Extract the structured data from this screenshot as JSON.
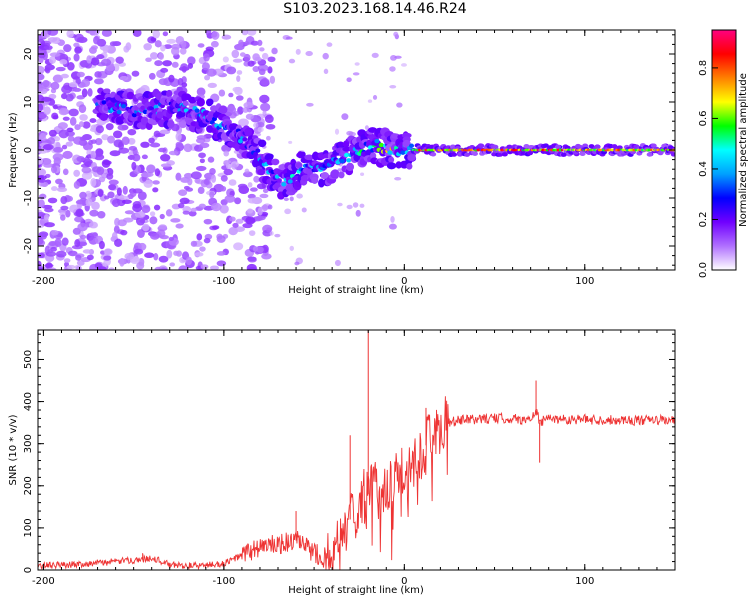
{
  "title": "S103.2023.168.14.46.R24",
  "chart_data": [
    {
      "type": "heatmap",
      "title": "",
      "xlabel": "Height of straight line (km)",
      "ylabel": "Frequency (Hz)",
      "xlim": [
        -203,
        150
      ],
      "ylim": [
        -25,
        25
      ],
      "xticks": [
        -200,
        -100,
        0,
        100
      ],
      "yticks": [
        -20,
        -10,
        0,
        10,
        20
      ],
      "colorbar": {
        "label": "Normalized spectral amplitude",
        "range": [
          0,
          0.95
        ],
        "ticks": [
          0.0,
          0.2,
          0.4,
          0.6,
          0.8
        ],
        "colors": [
          "#ffffff",
          "#b070ff",
          "#7000ff",
          "#0000ff",
          "#00a0ff",
          "#00ffff",
          "#00ff00",
          "#ffff00",
          "#ff8000",
          "#ff0000",
          "#ff0080"
        ]
      },
      "ridge": {
        "x": [
          -165,
          -150,
          -125,
          -110,
          -95,
          -85,
          -75,
          -65,
          -55,
          -45,
          -35,
          -25,
          -15,
          -8,
          0,
          20,
          60,
          100,
          150
        ],
        "y": [
          9,
          8,
          9,
          7,
          4,
          1,
          -4,
          -7,
          -3,
          -4,
          -2,
          0,
          1,
          0,
          0,
          0,
          0,
          0,
          0
        ],
        "amplitude": [
          0.35,
          0.4,
          0.38,
          0.4,
          0.42,
          0.4,
          0.42,
          0.45,
          0.42,
          0.4,
          0.45,
          0.55,
          0.6,
          0.62,
          0.7,
          0.78,
          0.78,
          0.75,
          0.7
        ]
      }
    },
    {
      "type": "line",
      "title": "",
      "xlabel": "Height of straight line (km)",
      "ylabel": "SNR (10 * v/v)",
      "xlim": [
        -203,
        150
      ],
      "ylim": [
        0,
        570
      ],
      "xticks": [
        -200,
        -100,
        0,
        100
      ],
      "yticks": [
        0,
        100,
        200,
        300,
        400,
        500
      ],
      "color": "#ee3333",
      "series": [
        {
          "name": "",
          "x": [
            -203,
            -190,
            -175,
            -160,
            -145,
            -140,
            -130,
            -115,
            -100,
            -90,
            -80,
            -70,
            -60,
            -50,
            -40,
            -35,
            -30,
            -25,
            -20,
            -15,
            -10,
            -5,
            0,
            5,
            10,
            15,
            20,
            25,
            30,
            40,
            50,
            60,
            70,
            73,
            75,
            80,
            90,
            100,
            110,
            120,
            130,
            140,
            150
          ],
          "y": [
            10,
            12,
            15,
            20,
            25,
            30,
            12,
            10,
            15,
            35,
            55,
            60,
            70,
            40,
            30,
            60,
            120,
            170,
            180,
            190,
            200,
            210,
            230,
            250,
            280,
            320,
            340,
            350,
            355,
            358,
            360,
            360,
            355,
            380,
            350,
            360,
            358,
            358,
            356,
            357,
            355,
            356,
            355
          ],
          "spikes": [
            {
              "x": -20,
              "y": 570
            },
            {
              "x": -30,
              "y": 320
            },
            {
              "x": 12,
              "y": 385
            },
            {
              "x": 73,
              "y": 450
            },
            {
              "x": 75,
              "y": 255
            },
            {
              "x": -60,
              "y": 140
            },
            {
              "x": -145,
              "y": 40
            }
          ]
        }
      ]
    }
  ]
}
